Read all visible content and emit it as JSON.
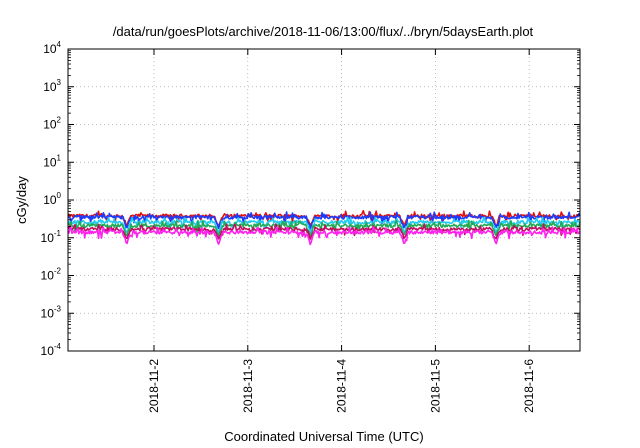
{
  "chart_data": {
    "type": "line",
    "title": "/data/run/goesPlots/archive/2018-11-06/13:00/flux/../bryn/5daysEarth.plot",
    "xlabel": "Coordinated Universal Time (UTC)",
    "ylabel": "cGy/day",
    "x_scale": "date",
    "x_range": [
      "2018-11-01T02:00",
      "2018-11-06T13:00"
    ],
    "y_scale": "log",
    "ylim": [
      0.0001,
      10000
    ],
    "grid": true,
    "legend": "none",
    "x_ticks": [
      {
        "label": "2018-11-2",
        "x": "2018-11-02T00:00"
      },
      {
        "label": "2018-11-3",
        "x": "2018-11-03T00:00"
      },
      {
        "label": "2018-11-4",
        "x": "2018-11-04T00:00"
      },
      {
        "label": "2018-11-5",
        "x": "2018-11-05T00:00"
      },
      {
        "label": "2018-11-6",
        "x": "2018-11-06T00:00"
      }
    ],
    "y_ticks": [
      {
        "base": "10",
        "exp": "4",
        "value": 10000
      },
      {
        "base": "10",
        "exp": "3",
        "value": 1000
      },
      {
        "base": "10",
        "exp": "2",
        "value": 100
      },
      {
        "base": "10",
        "exp": "1",
        "value": 10
      },
      {
        "base": "10",
        "exp": "0",
        "value": 1
      },
      {
        "base": "10",
        "exp": "-1",
        "value": 0.1
      },
      {
        "base": "10",
        "exp": "-2",
        "value": 0.01
      },
      {
        "base": "10",
        "exp": "-3",
        "value": 0.001
      },
      {
        "base": "10",
        "exp": "-4",
        "value": 0.0001
      }
    ],
    "series": [
      {
        "color": "#e01010",
        "level": 0.38,
        "dips": [
          {
            "x": "2018-11-01T17:00",
            "y": 0.2
          },
          {
            "x": "2018-11-02T16:30",
            "y": 0.2
          },
          {
            "x": "2018-11-03T16:00",
            "y": 0.2
          },
          {
            "x": "2018-11-04T16:00",
            "y": 0.2
          },
          {
            "x": "2018-11-05T15:30",
            "y": 0.2
          }
        ]
      },
      {
        "color": "#1a3cff",
        "level": 0.35,
        "dips": [
          {
            "x": "2018-11-01T17:00",
            "y": 0.17
          },
          {
            "x": "2018-11-02T16:30",
            "y": 0.17
          },
          {
            "x": "2018-11-03T16:00",
            "y": 0.17
          },
          {
            "x": "2018-11-04T16:00",
            "y": 0.17
          },
          {
            "x": "2018-11-05T15:30",
            "y": 0.17
          }
        ]
      },
      {
        "color": "#22ccee",
        "level": 0.26,
        "dips": [
          {
            "x": "2018-11-01T17:00",
            "y": 0.13
          },
          {
            "x": "2018-11-02T16:30",
            "y": 0.13
          },
          {
            "x": "2018-11-03T16:00",
            "y": 0.13
          },
          {
            "x": "2018-11-04T16:00",
            "y": 0.13
          },
          {
            "x": "2018-11-05T15:30",
            "y": 0.13
          }
        ]
      },
      {
        "color": "#22aa55",
        "level": 0.21,
        "dips": [
          {
            "x": "2018-11-01T17:00",
            "y": 0.11
          },
          {
            "x": "2018-11-02T16:30",
            "y": 0.11
          },
          {
            "x": "2018-11-03T16:00",
            "y": 0.11
          },
          {
            "x": "2018-11-04T16:00",
            "y": 0.11
          },
          {
            "x": "2018-11-05T15:30",
            "y": 0.11
          }
        ]
      },
      {
        "color": "#c01060",
        "level": 0.17,
        "dips": [
          {
            "x": "2018-11-01T17:00",
            "y": 0.09
          },
          {
            "x": "2018-11-02T16:30",
            "y": 0.09
          },
          {
            "x": "2018-11-03T16:00",
            "y": 0.09
          },
          {
            "x": "2018-11-04T16:00",
            "y": 0.09
          },
          {
            "x": "2018-11-05T15:30",
            "y": 0.09
          }
        ]
      },
      {
        "color": "#ff22ee",
        "level": 0.14,
        "dips": [
          {
            "x": "2018-11-01T17:00",
            "y": 0.065
          },
          {
            "x": "2018-11-02T16:30",
            "y": 0.065
          },
          {
            "x": "2018-11-03T16:00",
            "y": 0.065
          },
          {
            "x": "2018-11-04T16:00",
            "y": 0.065
          },
          {
            "x": "2018-11-05T15:30",
            "y": 0.065
          }
        ]
      }
    ]
  }
}
